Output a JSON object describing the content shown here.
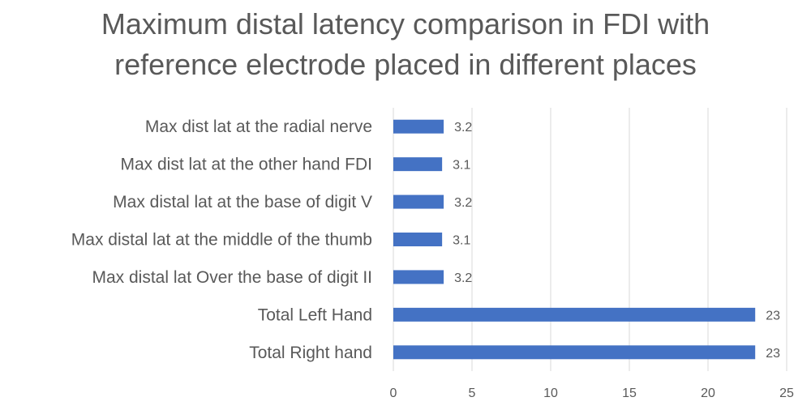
{
  "chart_data": {
    "type": "bar",
    "orientation": "horizontal",
    "title_lines": [
      "Maximum distal latency comparison in FDI with",
      "reference electrode placed in different places"
    ],
    "categories": [
      "Max dist lat at the radial nerve",
      "Max dist lat at the other hand FDI",
      "Max distal lat at the base of digit V",
      "Max distal lat at the middle of the thumb",
      "Max distal lat Over the base of digit II",
      "Total Left Hand",
      "Total Right hand"
    ],
    "values": [
      3.2,
      3.1,
      3.2,
      3.1,
      3.2,
      23,
      23
    ],
    "data_labels": [
      "3.2",
      "3.1",
      "3.2",
      "3.1",
      "3.2",
      "23",
      "23"
    ],
    "xlim": [
      0,
      25
    ],
    "xticks": [
      0,
      5,
      10,
      15,
      20,
      25
    ],
    "grid": true,
    "legend": "none",
    "colors": {
      "bar": "#4472C4",
      "grid": "#D9D9D9",
      "text": "#595959"
    }
  }
}
